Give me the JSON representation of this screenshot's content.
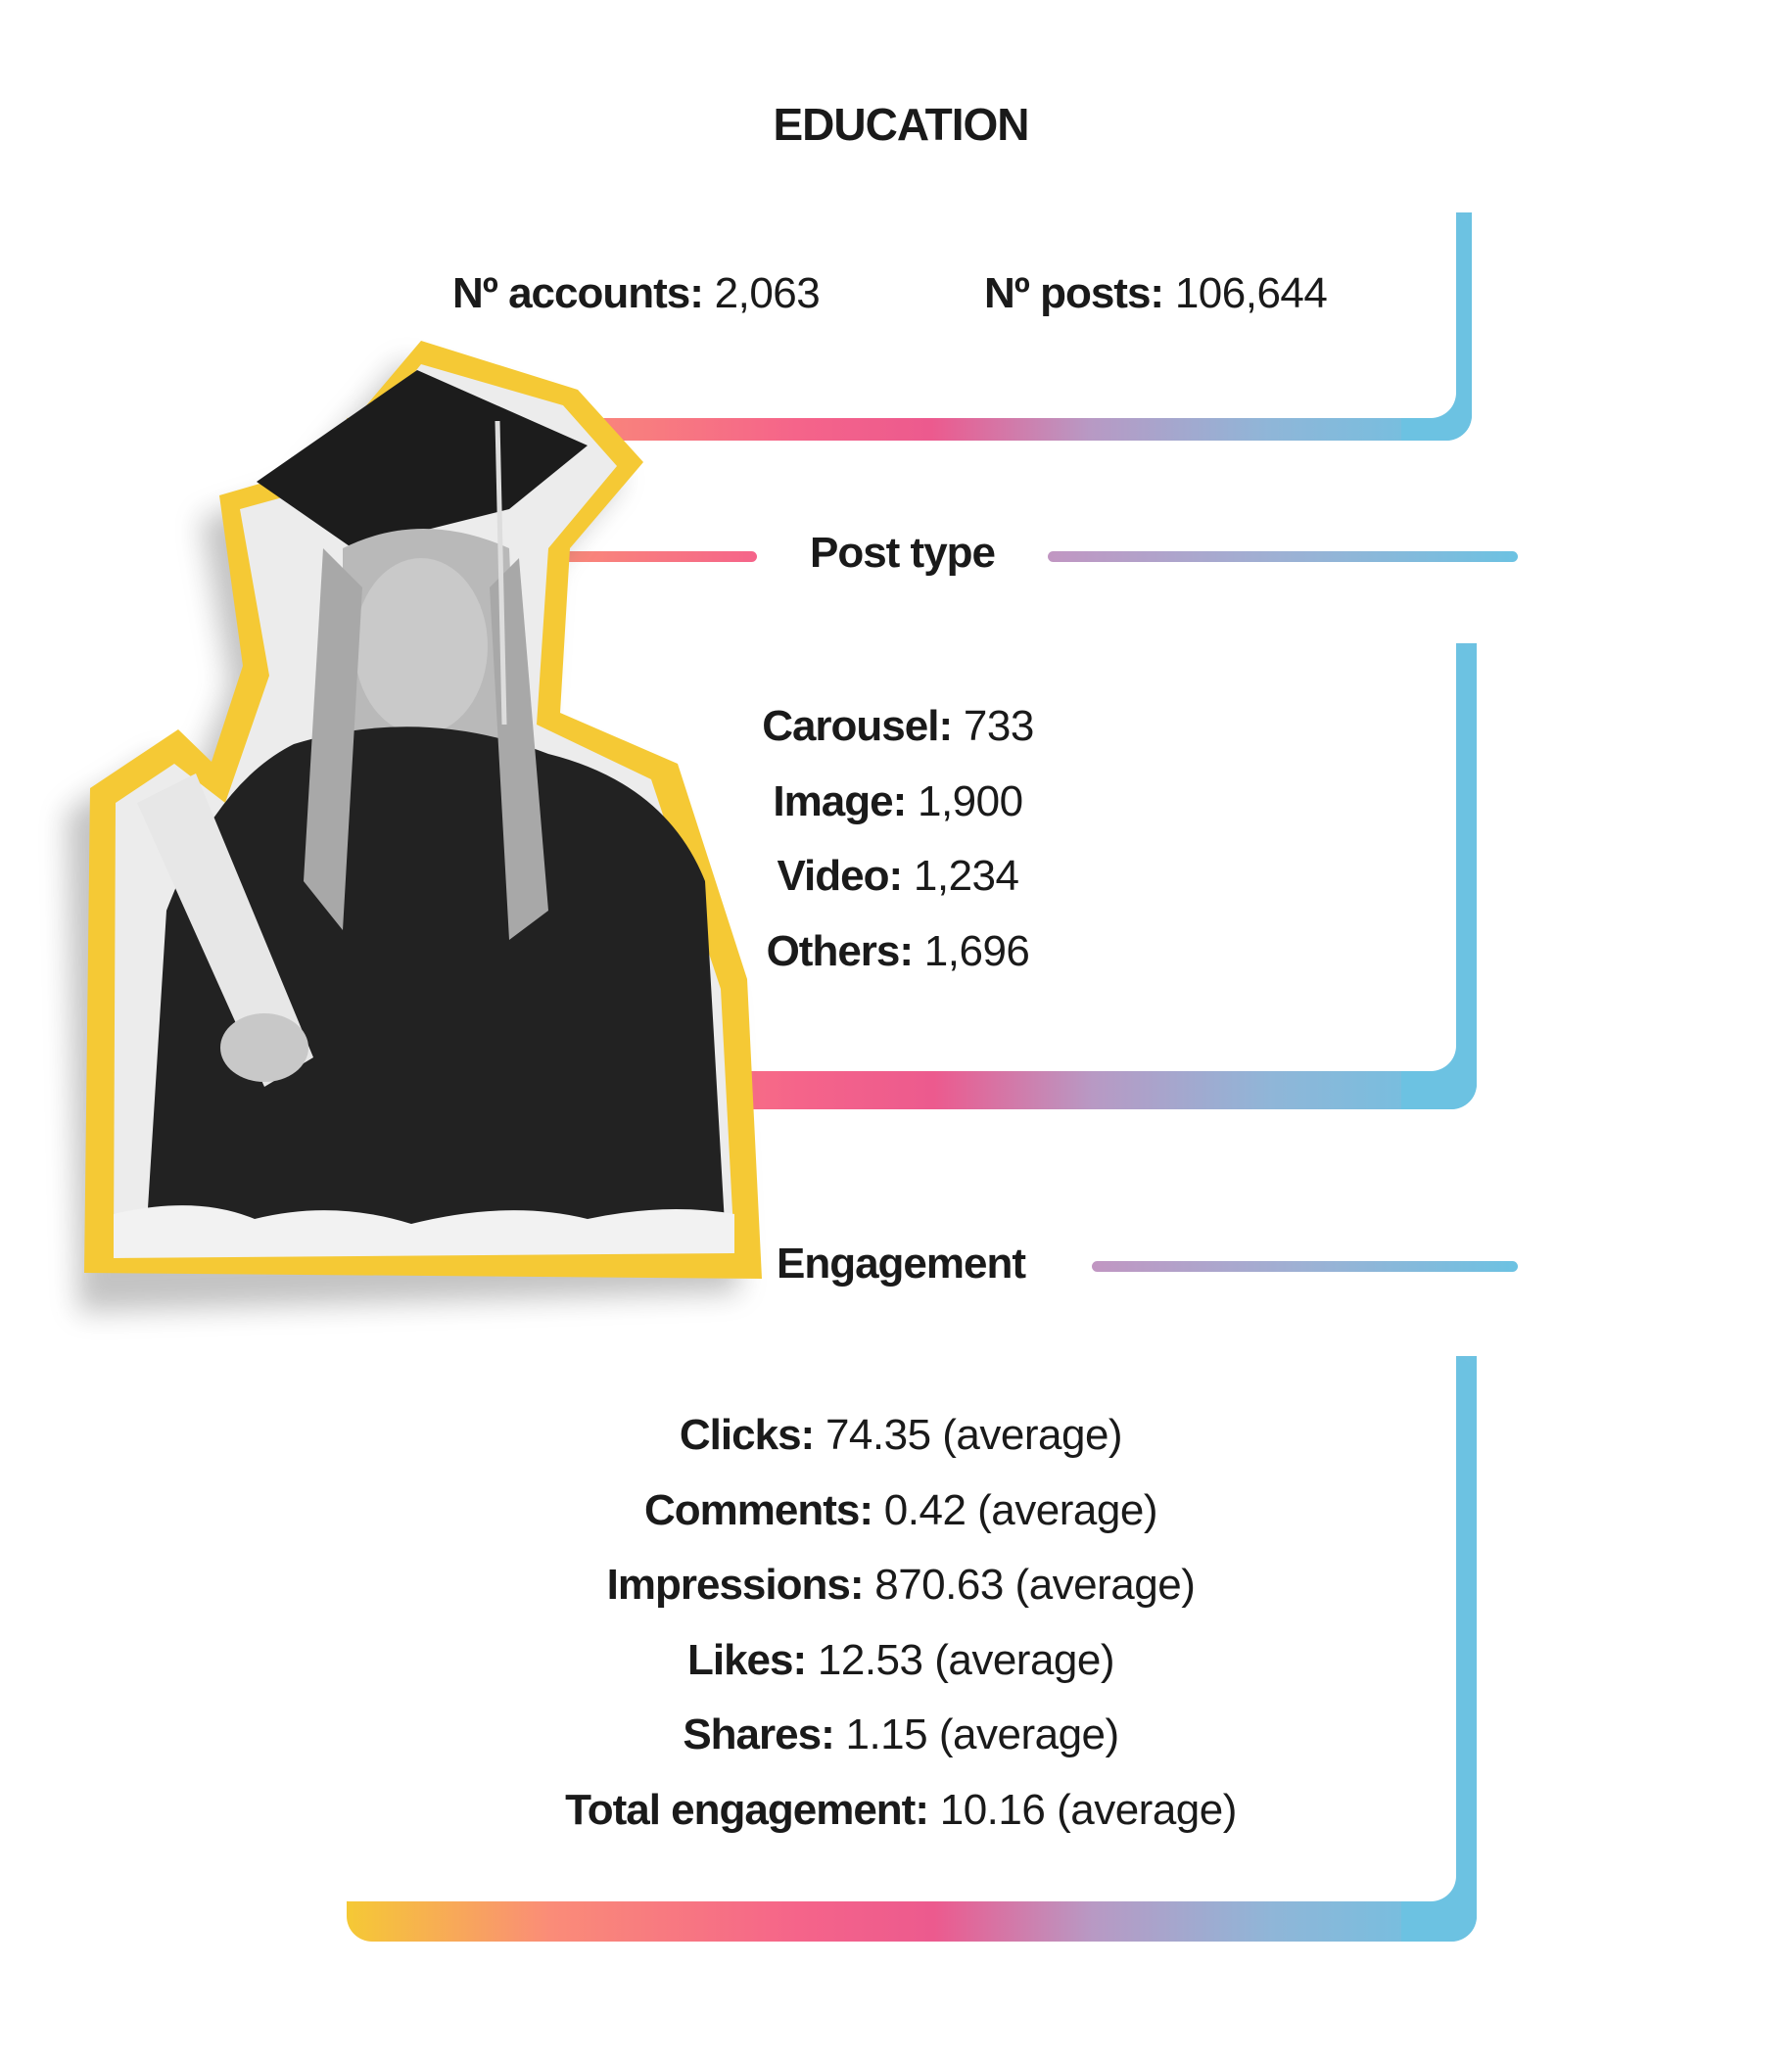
{
  "title": "EDUCATION",
  "summary": {
    "accounts_label": "Nº accounts:",
    "accounts_value": "2,063",
    "posts_label": "Nº posts:",
    "posts_value": "106,644"
  },
  "post_type": {
    "heading": "Post type",
    "items": [
      {
        "label": "Carousel:",
        "value": "733"
      },
      {
        "label": "Image:",
        "value": "1,900"
      },
      {
        "label": "Video:",
        "value": "1,234"
      },
      {
        "label": "Others:",
        "value": "1,696"
      }
    ]
  },
  "engagement": {
    "heading": "Engagement",
    "items": [
      {
        "label": "Clicks:",
        "value": "74.35 (average)"
      },
      {
        "label": "Comments:",
        "value": "0.42 (average)"
      },
      {
        "label": "Impressions:",
        "value": "870.63 (average)"
      },
      {
        "label": "Likes:",
        "value": "12.53 (average)"
      },
      {
        "label": "Shares:",
        "value": "1.15 (average)"
      },
      {
        "label": "Total engagement:",
        "value": "10.16 (average)"
      }
    ]
  },
  "colors": {
    "yellow": "#f5c935",
    "pink": "#ec5a8e",
    "blue": "#6cc2e2",
    "text": "#1a1a1a"
  },
  "image": {
    "subject": "graduate-photo-cutout"
  }
}
